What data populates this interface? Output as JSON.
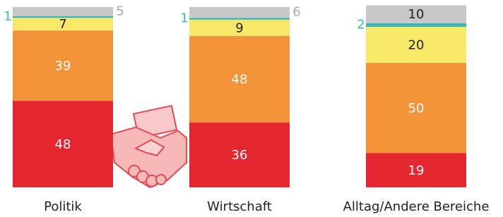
{
  "chart_data": {
    "type": "stacked-bar",
    "categories": [
      "Politik",
      "Wirtschaft",
      "Alltag/Andere Bereiche"
    ],
    "series": [
      {
        "color": "#e52631",
        "values": [
          48,
          36,
          19
        ]
      },
      {
        "color": "#f4923a",
        "values": [
          39,
          48,
          50
        ]
      },
      {
        "color": "#f7e86a",
        "values": [
          7,
          9,
          20
        ]
      },
      {
        "color": "#3bb8b0",
        "values": [
          1,
          1,
          2
        ]
      },
      {
        "color": "#c8c8c8",
        "values": [
          5,
          6,
          10
        ]
      }
    ]
  }
}
